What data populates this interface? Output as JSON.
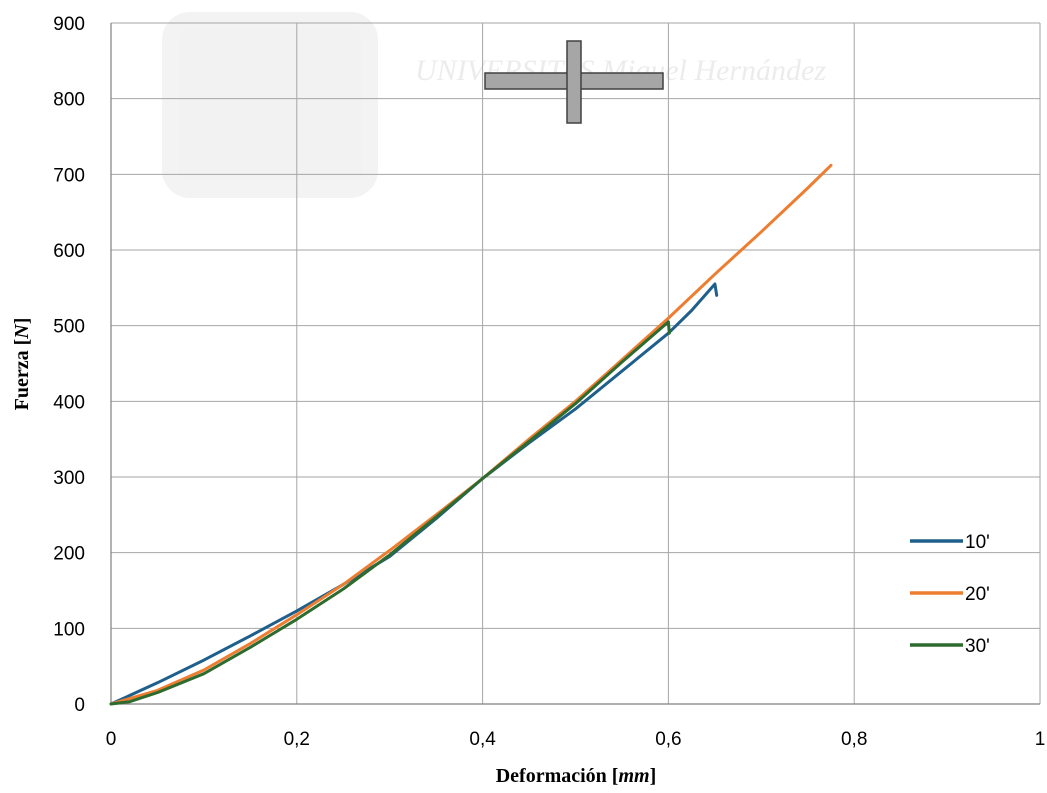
{
  "chart_data": {
    "type": "line",
    "title": "",
    "xlabel": "Deformación [mm]",
    "ylabel": "Fuerza [N]",
    "xlabel_parts": [
      {
        "text": "Deformación [",
        "italic": false
      },
      {
        "text": "mm",
        "italic": true
      },
      {
        "text": "]",
        "italic": false
      }
    ],
    "ylabel_parts": [
      {
        "text": "Fuerza [",
        "italic": false
      },
      {
        "text": "N",
        "italic": true
      },
      {
        "text": "]",
        "italic": false
      }
    ],
    "xlim": [
      0,
      1
    ],
    "ylim": [
      0,
      900
    ],
    "x_ticks": [
      0,
      0.2,
      0.4,
      0.6,
      0.8,
      1
    ],
    "x_tick_labels": [
      "0",
      "0,2",
      "0,4",
      "0,6",
      "0,8",
      "1"
    ],
    "y_ticks": [
      0,
      100,
      200,
      300,
      400,
      500,
      600,
      700,
      800,
      900
    ],
    "y_tick_labels": [
      "0",
      "100",
      "200",
      "300",
      "400",
      "500",
      "600",
      "700",
      "800",
      "900"
    ],
    "grid": true,
    "legend_position": "right",
    "series": [
      {
        "name": "10'",
        "color": "#1f5f8b",
        "points": [
          [
            0,
            0
          ],
          [
            0.05,
            28
          ],
          [
            0.1,
            58
          ],
          [
            0.15,
            90
          ],
          [
            0.2,
            123
          ],
          [
            0.25,
            158
          ],
          [
            0.3,
            195
          ],
          [
            0.35,
            245
          ],
          [
            0.4,
            298
          ],
          [
            0.45,
            345
          ],
          [
            0.5,
            390
          ],
          [
            0.55,
            440
          ],
          [
            0.6,
            490
          ],
          [
            0.625,
            520
          ],
          [
            0.65,
            555
          ],
          [
            0.652,
            540
          ]
        ]
      },
      {
        "name": "20'",
        "color": "#ed7d31",
        "points": [
          [
            0,
            0
          ],
          [
            0.05,
            18
          ],
          [
            0.1,
            45
          ],
          [
            0.15,
            80
          ],
          [
            0.2,
            118
          ],
          [
            0.25,
            158
          ],
          [
            0.3,
            203
          ],
          [
            0.35,
            250
          ],
          [
            0.4,
            298
          ],
          [
            0.45,
            350
          ],
          [
            0.5,
            400
          ],
          [
            0.55,
            455
          ],
          [
            0.6,
            510
          ],
          [
            0.65,
            568
          ],
          [
            0.7,
            624
          ],
          [
            0.75,
            682
          ],
          [
            0.775,
            712
          ]
        ]
      },
      {
        "name": "30'",
        "color": "#2e6b2f",
        "points": [
          [
            0,
            0
          ],
          [
            0.02,
            3
          ],
          [
            0.05,
            15
          ],
          [
            0.1,
            40
          ],
          [
            0.15,
            75
          ],
          [
            0.2,
            112
          ],
          [
            0.25,
            152
          ],
          [
            0.3,
            197
          ],
          [
            0.35,
            247
          ],
          [
            0.4,
            298
          ],
          [
            0.45,
            347
          ],
          [
            0.5,
            397
          ],
          [
            0.55,
            452
          ],
          [
            0.6,
            505
          ],
          [
            0.601,
            490
          ]
        ]
      }
    ],
    "inset_icon": "cross-shaped-specimen-icon",
    "inset_icon_color": "#a6a6a6"
  },
  "colors": {
    "grid": "#a6a6a6",
    "watermark": "#f2f2f2"
  },
  "watermark": {
    "text": "UNIVERSITAS Miguel Hernández",
    "icon": "university-logo-watermark"
  }
}
